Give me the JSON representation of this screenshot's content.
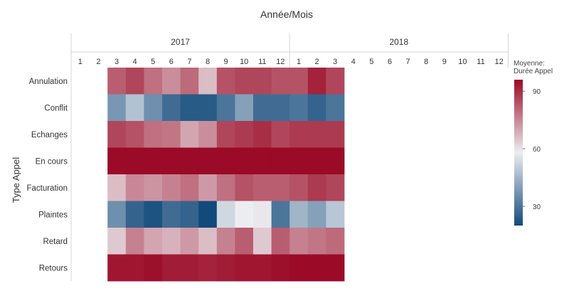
{
  "chart_data": {
    "type": "heatmap",
    "title": "Année/Mois",
    "ylabel": "Type Appel",
    "years": [
      "2017",
      "2018"
    ],
    "months": [
      "1",
      "2",
      "3",
      "4",
      "5",
      "6",
      "7",
      "8",
      "9",
      "10",
      "11",
      "12"
    ],
    "rows": [
      "Annulation",
      "Conflit",
      "Echanges",
      "En cours",
      "Facturation",
      "Plaintes",
      "Retard",
      "Retours"
    ],
    "columns": [
      {
        "year": "2017",
        "month": "1"
      },
      {
        "year": "2017",
        "month": "2"
      },
      {
        "year": "2017",
        "month": "3"
      },
      {
        "year": "2017",
        "month": "4"
      },
      {
        "year": "2017",
        "month": "5"
      },
      {
        "year": "2017",
        "month": "6"
      },
      {
        "year": "2017",
        "month": "7"
      },
      {
        "year": "2017",
        "month": "8"
      },
      {
        "year": "2017",
        "month": "9"
      },
      {
        "year": "2017",
        "month": "10"
      },
      {
        "year": "2017",
        "month": "11"
      },
      {
        "year": "2017",
        "month": "12"
      },
      {
        "year": "2018",
        "month": "1"
      },
      {
        "year": "2018",
        "month": "2"
      },
      {
        "year": "2018",
        "month": "3"
      },
      {
        "year": "2018",
        "month": "4"
      },
      {
        "year": "2018",
        "month": "5"
      },
      {
        "year": "2018",
        "month": "6"
      },
      {
        "year": "2018",
        "month": "7"
      },
      {
        "year": "2018",
        "month": "8"
      },
      {
        "year": "2018",
        "month": "9"
      },
      {
        "year": "2018",
        "month": "10"
      },
      {
        "year": "2018",
        "month": "11"
      },
      {
        "year": "2018",
        "month": "12"
      }
    ],
    "values": [
      [
        null,
        null,
        82,
        86,
        79,
        74,
        80,
        66,
        84,
        86,
        86,
        84,
        84,
        92,
        86,
        null,
        null,
        null,
        null,
        null,
        null,
        null,
        null,
        null
      ],
      [
        null,
        null,
        38,
        48,
        36,
        28,
        24,
        24,
        30,
        40,
        28,
        28,
        30,
        26,
        30,
        null,
        null,
        null,
        null,
        null,
        null,
        null,
        null,
        null
      ],
      [
        null,
        null,
        86,
        84,
        79,
        78,
        70,
        74,
        86,
        88,
        90,
        86,
        88,
        88,
        88,
        null,
        null,
        null,
        null,
        null,
        null,
        null,
        null,
        null
      ],
      [
        null,
        null,
        96,
        96,
        96,
        96,
        96,
        96,
        96,
        96,
        96,
        96,
        96,
        96,
        96,
        null,
        null,
        null,
        null,
        null,
        null,
        null,
        null,
        null
      ],
      [
        null,
        null,
        66,
        75,
        73,
        76,
        79,
        72,
        79,
        84,
        82,
        82,
        84,
        88,
        86,
        null,
        null,
        null,
        null,
        null,
        null,
        null,
        null,
        null
      ],
      [
        null,
        null,
        36,
        26,
        22,
        28,
        26,
        17,
        53,
        58,
        59,
        30,
        45,
        40,
        49,
        null,
        null,
        null,
        null,
        null,
        null,
        null,
        null,
        null
      ],
      [
        null,
        null,
        64,
        76,
        70,
        68,
        72,
        66,
        76,
        82,
        64,
        82,
        76,
        78,
        80,
        null,
        null,
        null,
        null,
        null,
        null,
        null,
        null,
        null
      ],
      [
        null,
        null,
        94,
        94,
        95,
        93,
        93,
        92,
        93,
        94,
        94,
        95,
        96,
        96,
        96,
        null,
        null,
        null,
        null,
        null,
        null,
        null,
        null,
        null
      ]
    ],
    "legend": {
      "title_lines": [
        "Moyenne:",
        "Durée Appel"
      ],
      "min": 20,
      "max": 96,
      "ticks": [
        90,
        60,
        30
      ],
      "position": "right"
    },
    "colors": {
      "low": "#124a7b",
      "mid": "#ecedf1",
      "high": "#9b0a26",
      "grid": "#d5d5d5"
    }
  }
}
